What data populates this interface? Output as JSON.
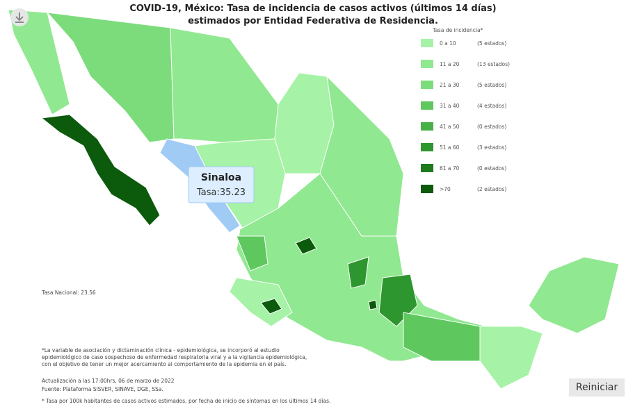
{
  "header": {
    "title_line1": "COVID-19, México: Tasa de incidencia de casos activos (últimos 14 días)",
    "title_line2": "estimados por Entidad Federativa de Residencia."
  },
  "legend": {
    "title": "Tasa de incidencia*",
    "items": [
      {
        "range": "0  a  10",
        "count": "(5 estados)",
        "color": "#a6f2a6"
      },
      {
        "range": "11 a  20",
        "count": "(13 estados)",
        "color": "#90e890"
      },
      {
        "range": "21 a  30",
        "count": "(5 estados)",
        "color": "#7cdc7c"
      },
      {
        "range": "31 a  40",
        "count": "(4 estados)",
        "color": "#5ec85e"
      },
      {
        "range": "41 a 50",
        "count": "(0 estados)",
        "color": "#45b045"
      },
      {
        "range": "51 a  60",
        "count": "(3 estados)",
        "color": "#2e962e"
      },
      {
        "range": "61 a 70",
        "count": "(0 estados)",
        "color": "#1d7a1d"
      },
      {
        "range": ">70",
        "count": "(2 estados)",
        "color": "#0c5a0c"
      }
    ]
  },
  "tooltip": {
    "name": "Sinaloa",
    "value": "Tasa:35.23"
  },
  "national_rate": "Tasa Nacional: 23.56",
  "notes": [
    "*La variable de asociación y dictaminación clínica - epidemiológica, se incorporó al estudio",
    "epidemiológico de caso sospechoso de enfermedad respiratoria viral y a la vigilancia epidemiológica,",
    "con el objetivo de tener un mejor acercamiento al comportamiento de la epidemia en el país."
  ],
  "update": "Actualización a las 17:00hrs, 06 de marzo de 2022",
  "source": "Fuente: Plataforma SISVER, SINAVE, DGE, SSa.",
  "footnote": "* Tasa por 100k habitantes de casos activos estimados, por fecha de inicio de síntomas en los últimos 14 días.",
  "button": "Reiniciar"
}
